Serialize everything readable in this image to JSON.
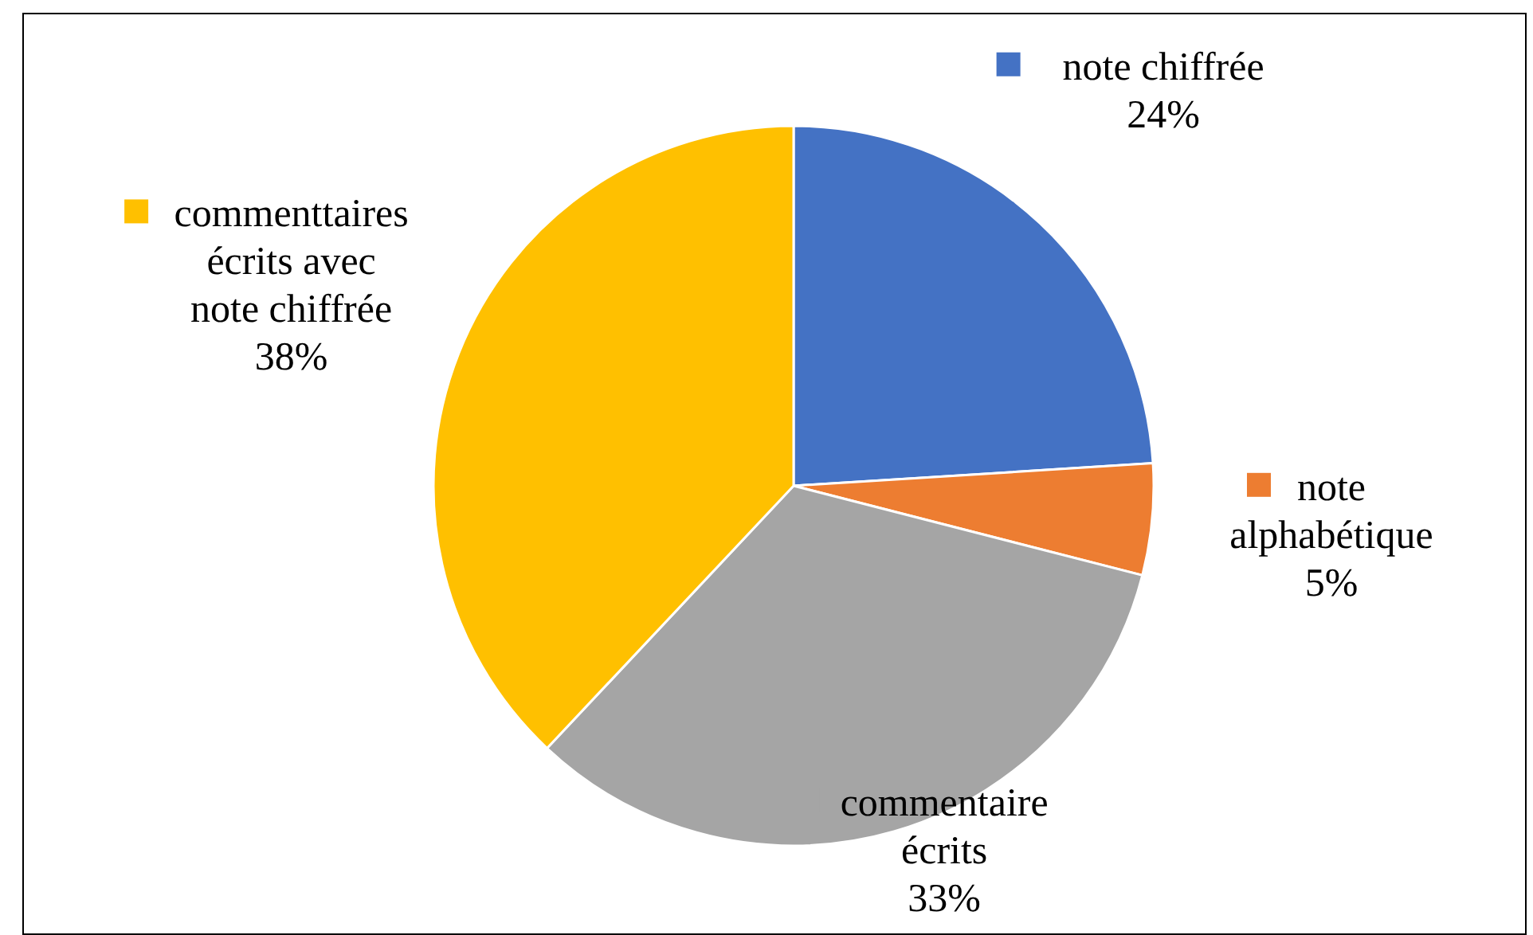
{
  "chart_data": {
    "type": "pie",
    "categories": [
      "note chiffrée",
      "note alphabétique",
      "commentaire écrits",
      "commenttaires écrits avec note chiffrée"
    ],
    "values": [
      24,
      5,
      33,
      38
    ],
    "colors": [
      "#4472c4",
      "#ed7d31",
      "#a5a5a5",
      "#ffc000"
    ],
    "value_labels": [
      "24%",
      "5%",
      "33%",
      "38%"
    ],
    "legend": "right"
  }
}
